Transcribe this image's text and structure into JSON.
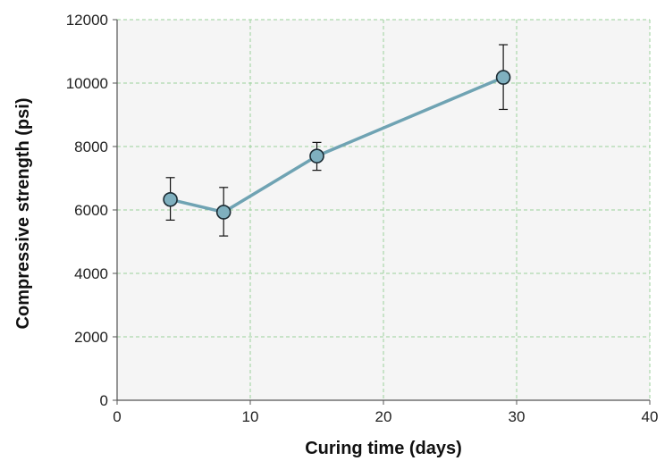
{
  "chart_data": {
    "type": "line",
    "title": "",
    "xlabel": "Curing time (days)",
    "ylabel": "Compressive strength (psi)",
    "xlim": [
      0,
      40
    ],
    "ylim": [
      0,
      12000
    ],
    "x_ticks": [
      0,
      10,
      20,
      30,
      40
    ],
    "y_ticks": [
      0,
      2000,
      4000,
      6000,
      8000,
      10000,
      12000
    ],
    "grid": true,
    "legend": "none",
    "series": [
      {
        "x": [
          4,
          8,
          15,
          29
        ],
        "y": [
          6330,
          5930,
          7700,
          10180
        ],
        "error_low": [
          5680,
          5180,
          7250,
          9170
        ],
        "error_high": [
          7020,
          6710,
          8130,
          11210
        ]
      }
    ],
    "colors": {
      "line": "#6fa3b3",
      "marker_fill": "#7fb0bf",
      "marker_edge": "#1b2b33",
      "error_bar": "#111111",
      "grid": "#9bd19b",
      "plot_background": "#f5f5f5",
      "axis": "#555555"
    }
  }
}
